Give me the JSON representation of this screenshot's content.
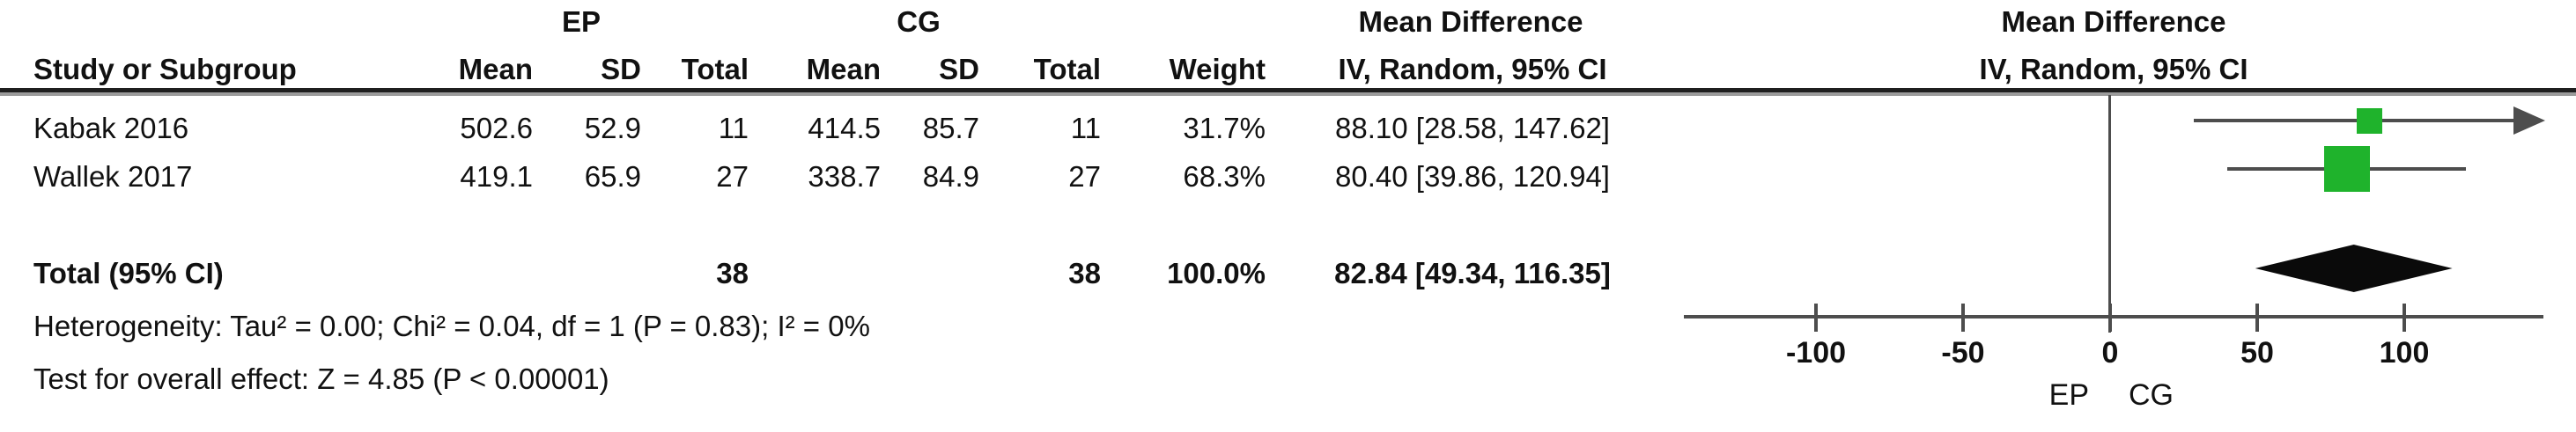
{
  "colors": {
    "marker": "#1fb32c",
    "diamond": "#0a0a0a",
    "line": "#4d4d4d",
    "text": "#111111"
  },
  "table": {
    "group_headers": {
      "ep": "EP",
      "cg": "CG",
      "md": "Mean Difference"
    },
    "col_headers": {
      "study": "Study or Subgroup",
      "mean": "Mean",
      "sd": "SD",
      "total": "Total",
      "weight": "Weight",
      "ci": "IV, Random, 95% CI"
    },
    "rows": [
      {
        "study": "Kabak 2016",
        "ep_mean": "502.6",
        "ep_sd": "52.9",
        "ep_total": "11",
        "cg_mean": "414.5",
        "cg_sd": "85.7",
        "cg_total": "11",
        "weight": "31.7%",
        "ci": "88.10 [28.58, 147.62]"
      },
      {
        "study": "Wallek 2017",
        "ep_mean": "419.1",
        "ep_sd": "65.9",
        "ep_total": "27",
        "cg_mean": "338.7",
        "cg_sd": "84.9",
        "cg_total": "27",
        "weight": "68.3%",
        "ci": "80.40 [39.86, 120.94]"
      }
    ],
    "total_row": {
      "label": "Total (95% CI)",
      "ep_total": "38",
      "cg_total": "38",
      "weight": "100.0%",
      "ci": "82.84 [49.34, 116.35]"
    },
    "footnotes": {
      "heterogeneity": "Heterogeneity: Tau² = 0.00; Chi² = 0.04, df = 1 (P = 0.83); I² = 0%",
      "overall_effect": "Test for overall effect: Z = 4.85 (P < 0.00001)"
    }
  },
  "plot": {
    "header_line1": "Mean Difference",
    "header_line2": "IV, Random, 95% CI",
    "favours_left": "EP",
    "favours_right": "CG"
  },
  "chart_data": {
    "type": "forest",
    "effect_measure": "Mean Difference, IV, Random, 95% CI",
    "axis": {
      "ticks": [
        -100,
        -50,
        0,
        50,
        100
      ],
      "xlim": [
        -145,
        147
      ]
    },
    "studies": [
      {
        "name": "Kabak 2016",
        "md": 88.1,
        "ci_low": 28.58,
        "ci_high": 147.62,
        "weight_pct": 31.7,
        "ep": {
          "mean": 502.6,
          "sd": 52.9,
          "total": 11
        },
        "cg": {
          "mean": 414.5,
          "sd": 85.7,
          "total": 11
        }
      },
      {
        "name": "Wallek 2017",
        "md": 80.4,
        "ci_low": 39.86,
        "ci_high": 120.94,
        "weight_pct": 68.3,
        "ep": {
          "mean": 419.1,
          "sd": 65.9,
          "total": 27
        },
        "cg": {
          "mean": 338.7,
          "sd": 84.9,
          "total": 27
        }
      }
    ],
    "total": {
      "label": "Total (95% CI)",
      "md": 82.84,
      "ci_low": 49.34,
      "ci_high": 116.35,
      "weight_pct": 100.0,
      "ep_total": 38,
      "cg_total": 38
    },
    "heterogeneity": {
      "tau2": 0.0,
      "chi2": 0.04,
      "df": 1,
      "p": 0.83,
      "i2_pct": 0
    },
    "overall_effect": {
      "z": 4.85,
      "p": "< 0.00001"
    }
  }
}
